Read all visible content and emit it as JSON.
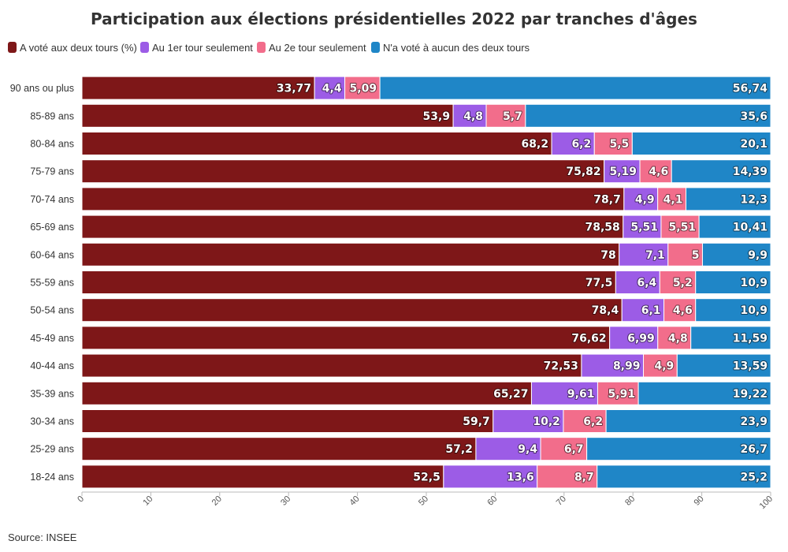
{
  "chart_data": {
    "type": "bar",
    "orientation": "horizontal",
    "stacked": true,
    "title": "Participation aux élections présidentielles 2022 par tranches d'âges",
    "source": "Source: INSEE",
    "legend_position": "top-left",
    "xlim": [
      0,
      100
    ],
    "x_ticks": [
      "0",
      "10",
      "20",
      "30",
      "40",
      "50",
      "60",
      "70",
      "80",
      "90",
      "100"
    ],
    "categories": [
      "90 ans ou plus",
      "85-89 ans",
      "80-84 ans",
      "75-79 ans",
      "70-74 ans",
      "65-69 ans",
      "60-64 ans",
      "55-59 ans",
      "50-54 ans",
      "45-49 ans",
      "40-44 ans",
      "35-39 ans",
      "30-34 ans",
      "25-29 ans",
      "18-24 ans"
    ],
    "series": [
      {
        "name": "A voté aux deux tours (%)",
        "color": "#7e1718",
        "values": [
          33.77,
          53.9,
          68.2,
          75.82,
          78.7,
          78.58,
          78,
          77.5,
          78.4,
          76.62,
          72.53,
          65.27,
          59.7,
          57.2,
          52.5
        ],
        "labels": [
          "33,77",
          "53,9",
          "68,2",
          "75,82",
          "78,7",
          "78,58",
          "78",
          "77,5",
          "78,4",
          "76,62",
          "72,53",
          "65,27",
          "59,7",
          "57,2",
          "52,5"
        ]
      },
      {
        "name": "Au 1er tour seulement",
        "color": "#9c5ce6",
        "values": [
          4.4,
          4.8,
          6.2,
          5.19,
          4.9,
          5.51,
          7.1,
          6.4,
          6.1,
          6.99,
          8.99,
          9.61,
          10.2,
          9.4,
          13.6
        ],
        "labels": [
          "4,4",
          "4,8",
          "6,2",
          "5,19",
          "4,9",
          "5,51",
          "7,1",
          "6,4",
          "6,1",
          "6,99",
          "8,99",
          "9,61",
          "10,2",
          "9,4",
          "13,6"
        ]
      },
      {
        "name": "Au 2e tour seulement",
        "color": "#f26d8b",
        "values": [
          5.09,
          5.7,
          5.5,
          4.6,
          4.1,
          5.51,
          5,
          5.2,
          4.6,
          4.8,
          4.9,
          5.91,
          6.2,
          6.7,
          8.7
        ],
        "labels": [
          "5,09",
          "5,7",
          "5,5",
          "4,6",
          "4,1",
          "5,51",
          "5",
          "5,2",
          "4,6",
          "4,8",
          "4,9",
          "5,91",
          "6,2",
          "6,7",
          "8,7"
        ]
      },
      {
        "name": "N'a voté à aucun des deux tours",
        "color": "#1f86c7",
        "values": [
          56.74,
          35.6,
          20.1,
          14.39,
          12.3,
          10.41,
          9.9,
          10.9,
          10.9,
          11.59,
          13.59,
          19.22,
          23.9,
          26.7,
          25.2
        ],
        "labels": [
          "56,74",
          "35,6",
          "20,1",
          "14,39",
          "12,3",
          "10,41",
          "9,9",
          "10,9",
          "10,9",
          "11,59",
          "13,59",
          "19,22",
          "23,9",
          "26,7",
          "25,2"
        ]
      }
    ]
  }
}
